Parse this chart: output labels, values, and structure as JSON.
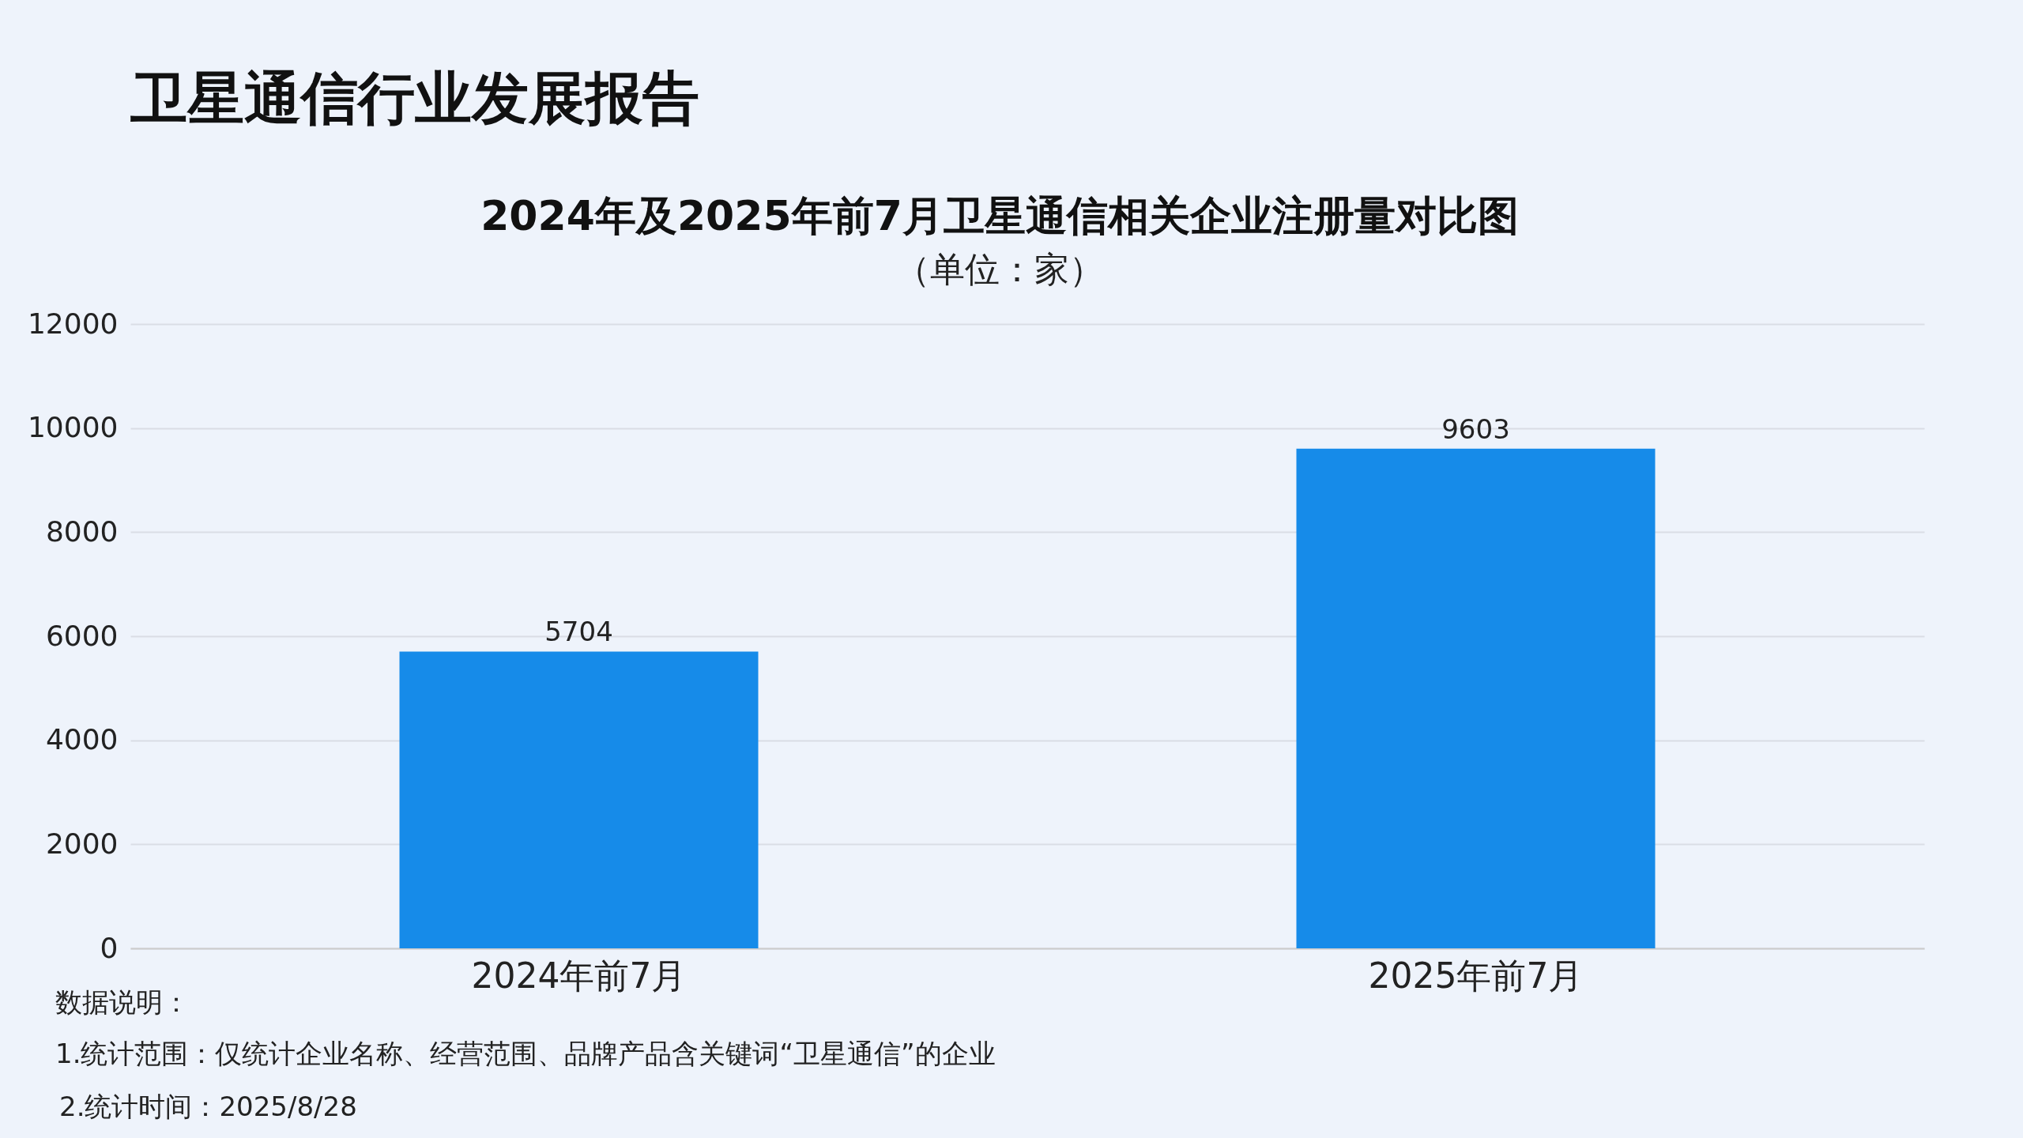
{
  "chart_data": {
    "type": "bar",
    "title": "卫星通信行业发展报告",
    "subtitle": "2024年及2025年前7月卫星通信相关企业注册量对比图",
    "categories": [
      "2024年前7月",
      "2025年前7月"
    ],
    "values": [
      5704,
      9603
    ],
    "color": "#168be9",
    "ylim": [
      0,
      12000
    ],
    "yticks": [
      0,
      2000,
      4000,
      6000,
      8000,
      10000,
      12000
    ],
    "grid": "y",
    "data_labels": true,
    "annotations": [
      "（单位：家）",
      "数据说明：",
      "1.统计范围：仅统计企业名称、经营范围、品牌产品含关键词“卫星通信”的企业",
      "2.统计时间：2025/8/28"
    ]
  }
}
